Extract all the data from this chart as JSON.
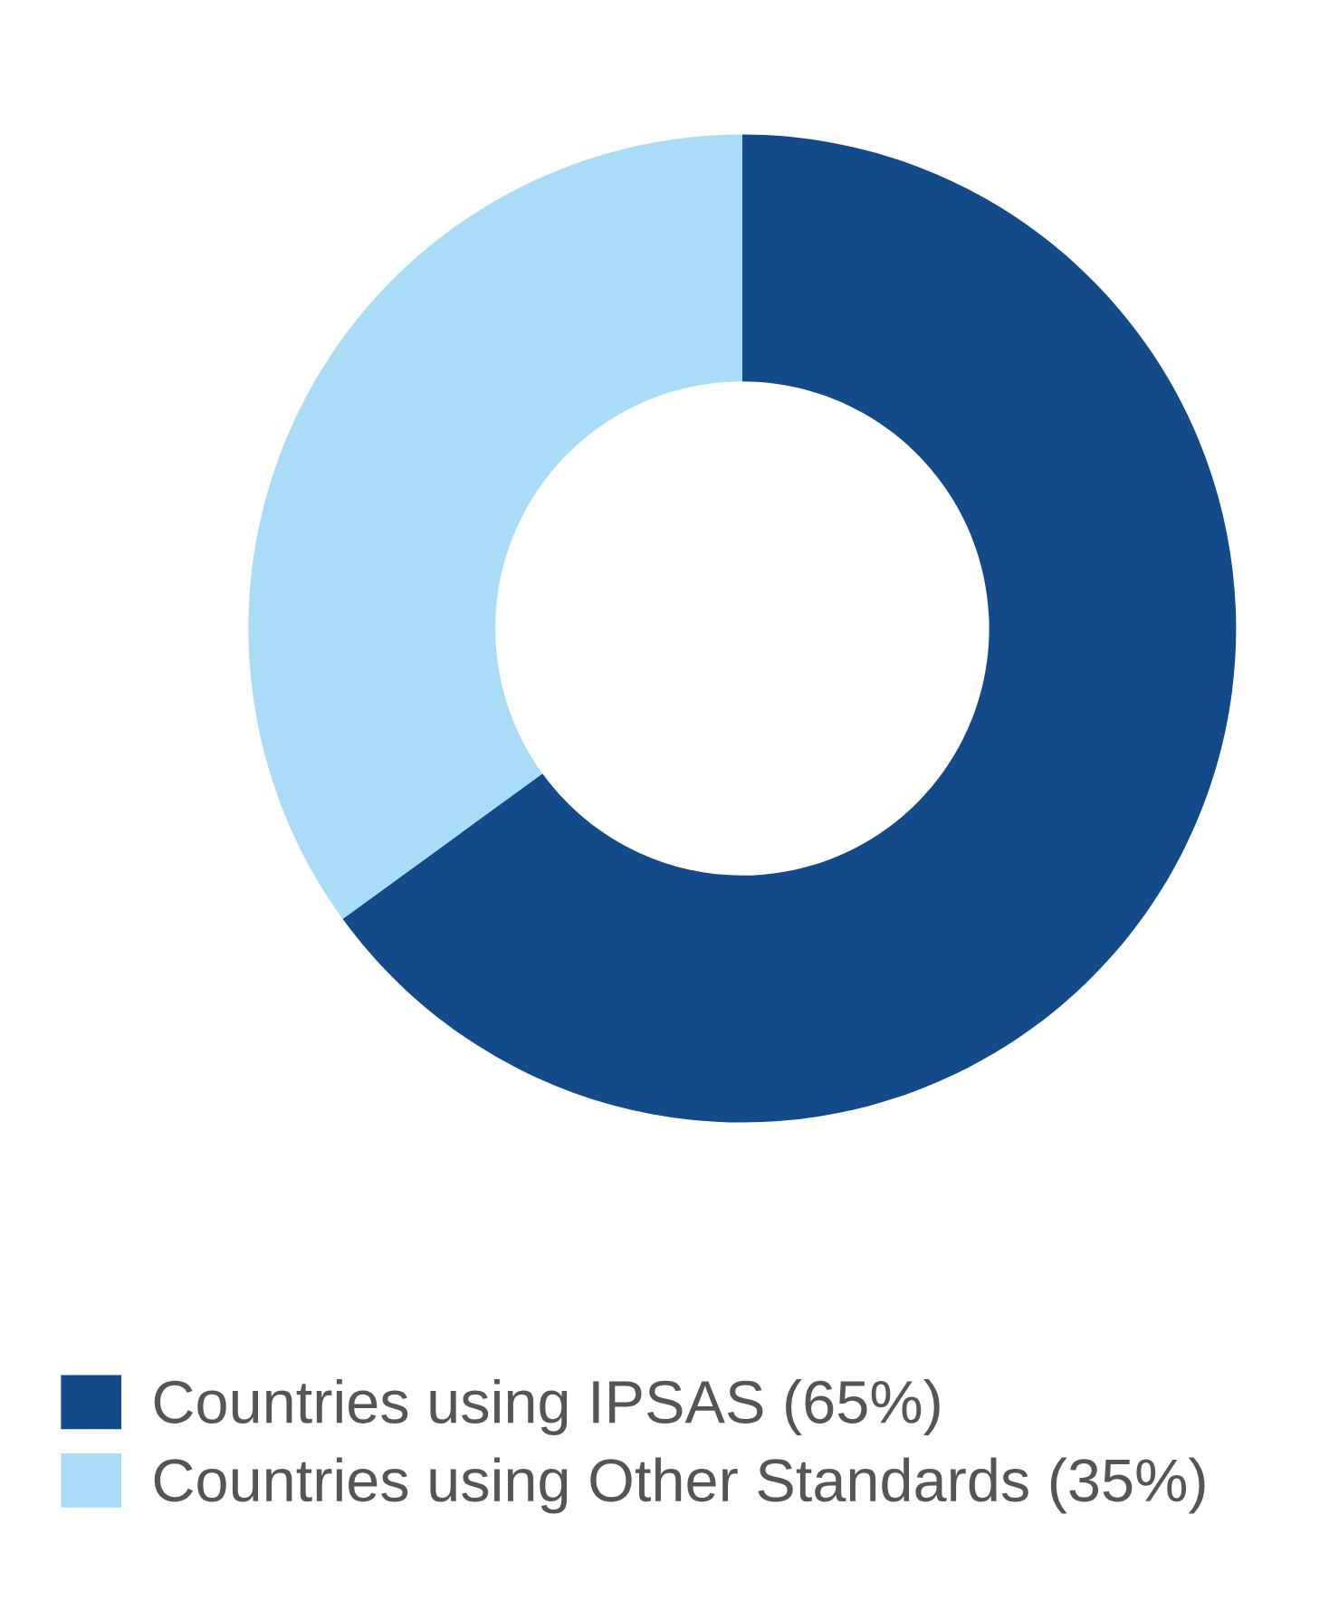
{
  "chart_data": {
    "type": "donut",
    "categories": [
      "Countries using IPSAS (65%)",
      "Countries using Other Standards (35%)"
    ],
    "values": [
      65,
      35
    ],
    "colors": [
      "#124a8a",
      "#a8dcf7"
    ],
    "legend": "bottom left"
  }
}
